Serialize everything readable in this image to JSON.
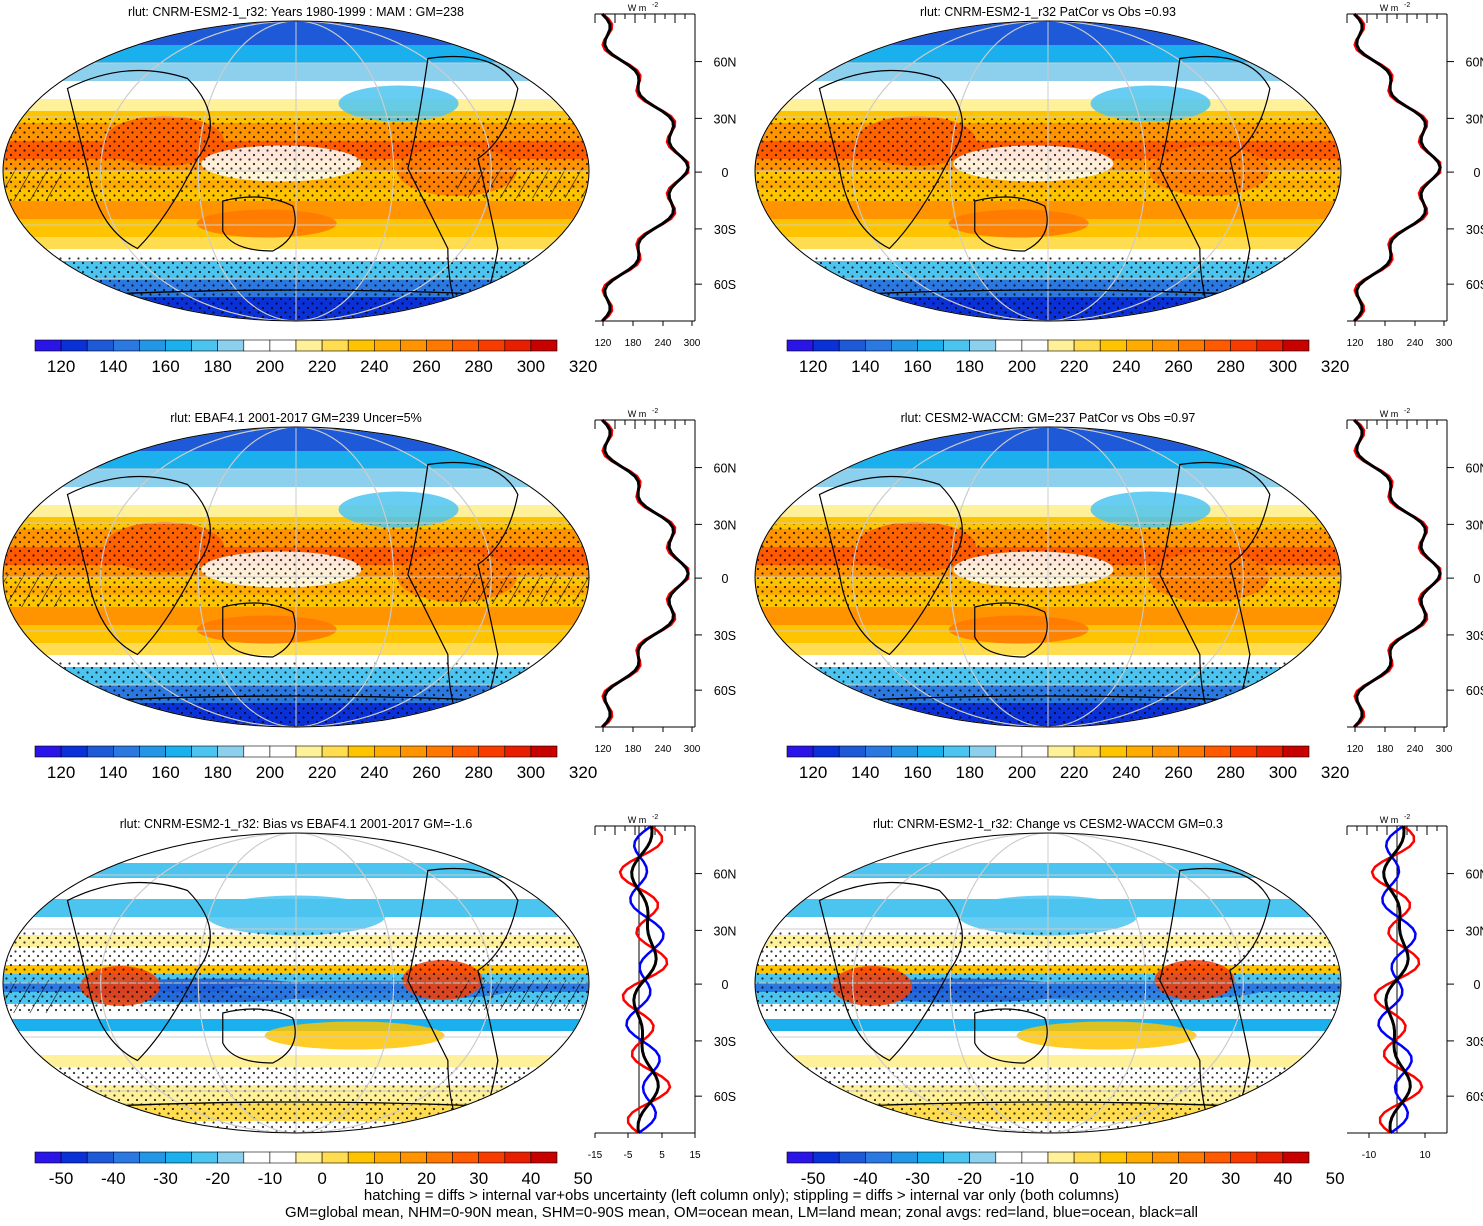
{
  "panels": [
    {
      "title": "rlut: CNRM-ESM2-1_r32: Years 1980-1999 : MAM : GM=238",
      "kind": "abs",
      "zonal_ticks": [
        "120",
        "180",
        "240",
        "300"
      ],
      "zonal_range": [
        100,
        300
      ]
    },
    {
      "title": "rlut: CNRM-ESM2-1_r32 PatCor vs Obs =0.93",
      "kind": "abs",
      "zonal_ticks": [
        "120",
        "180",
        "240",
        "300"
      ],
      "zonal_range": [
        100,
        300
      ]
    },
    {
      "title": "rlut: EBAF4.1 2001-2017 GM=239 Uncer=5%",
      "kind": "abs",
      "zonal_ticks": [
        "120",
        "180",
        "240",
        "300"
      ],
      "zonal_range": [
        100,
        300
      ]
    },
    {
      "title": "rlut: CESM2-WACCM: GM=237 PatCor vs Obs =0.97",
      "kind": "abs",
      "zonal_ticks": [
        "120",
        "180",
        "240",
        "300"
      ],
      "zonal_range": [
        100,
        300
      ]
    },
    {
      "title": "rlut: CNRM-ESM2-1_r32: Bias vs EBAF4.1 2001-2017 GM=-1.6",
      "kind": "diff",
      "zonal_ticks": [
        "-15",
        "-5",
        "5",
        "15"
      ],
      "zonal_range": [
        -15,
        15
      ]
    },
    {
      "title": "rlut: CNRM-ESM2-1_r32: Change vs CESM2-WACCM GM=0.3",
      "kind": "diff",
      "zonal_ticks": [
        "-10",
        "10"
      ],
      "zonal_range": [
        -15,
        15
      ]
    }
  ],
  "lat_labels": [
    "60N",
    "30N",
    "0",
    "30S",
    "60S"
  ],
  "units_label": "W m",
  "units_exp": "-2",
  "colorbar_abs": {
    "labels": [
      "120",
      "140",
      "160",
      "180",
      "200",
      "220",
      "240",
      "260",
      "280",
      "300",
      "320"
    ]
  },
  "colorbar_diff": {
    "labels": [
      "-50",
      "-40",
      "-30",
      "-20",
      "-10",
      "0",
      "10",
      "20",
      "30",
      "40",
      "50"
    ]
  },
  "palette": [
    "#2a14e8",
    "#0a30d8",
    "#1e5ad8",
    "#2a78e0",
    "#2496e6",
    "#1ab0ee",
    "#4cc4f0",
    "#8cd0ee",
    "#ffffff",
    "#ffffff",
    "#fff09a",
    "#ffdc50",
    "#ffc400",
    "#ffac00",
    "#ff9400",
    "#ff7800",
    "#ff5a00",
    "#f83c00",
    "#e81e00",
    "#c80000"
  ],
  "legend_colors": {
    "land": "#ff0000",
    "ocean": "#0000ff",
    "all": "#000000"
  },
  "footer": {
    "line1": "hatching = diffs > internal var+obs uncertainty (left column only); stippling = diffs > internal var only (both columns)",
    "line2": "GM=global mean, NHM=0-90N mean, SHM=0-90S mean, OM=ocean mean, LM=land mean; zonal avgs: red=land, blue=ocean, black=all"
  }
}
